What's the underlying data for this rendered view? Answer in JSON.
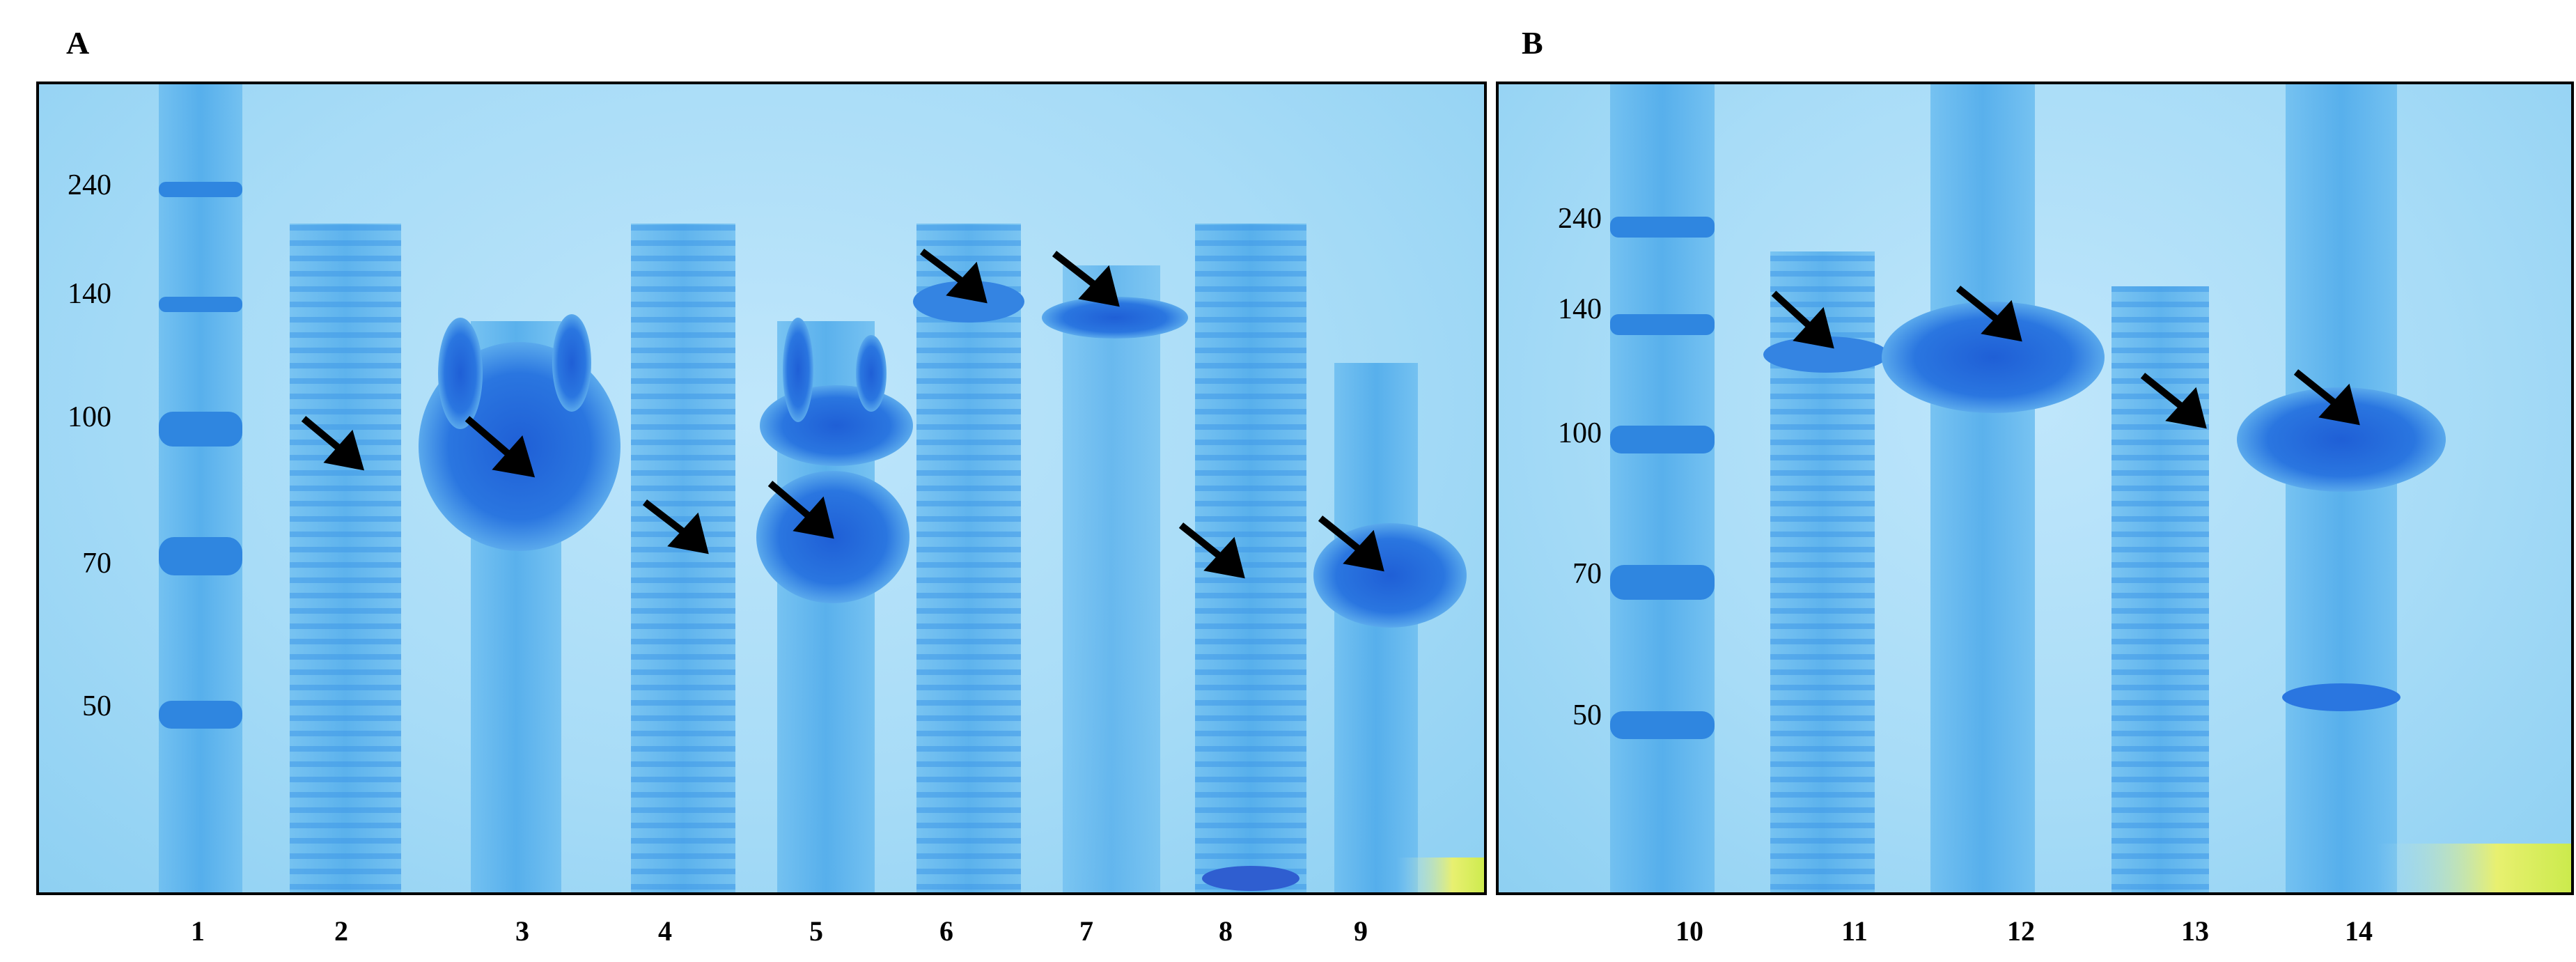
{
  "panels": [
    {
      "letter": "A",
      "markers": [
        "240",
        "140",
        "100",
        "70",
        "50"
      ],
      "lanes": [
        "1",
        "2",
        "3",
        "4",
        "5",
        "6",
        "7",
        "8",
        "9"
      ]
    },
    {
      "letter": "B",
      "markers": [
        "240",
        "140",
        "100",
        "70",
        "50"
      ],
      "lanes": [
        "10",
        "11",
        "12",
        "13",
        "14"
      ]
    }
  ],
  "colors": {
    "gel_background": "#a8dcf7",
    "band": "#2f86e0",
    "band_dark": "#1a55c8",
    "arrow": "#000000"
  }
}
